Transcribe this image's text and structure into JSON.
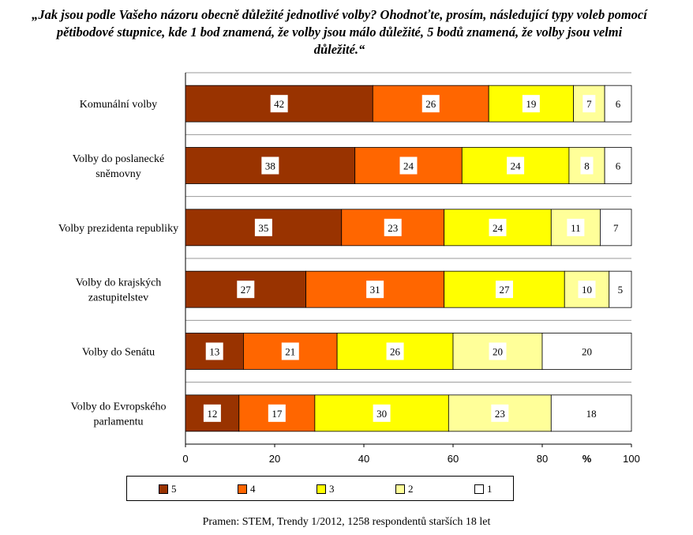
{
  "title": "„Jak jsou podle Vašeho názoru obecně důležité jednotlivé volby? Ohodnoťte, prosím, následující typy voleb pomocí pětibodové stupnice, kde 1 bod znamená, že volby jsou málo důležité, 5 bodů znamená, že volby jsou velmi důležité.“",
  "source": "Pramen: STEM, Trendy 1/2012, 1258 respondentů starších 18 let",
  "colors": {
    "5": "#993300",
    "4": "#ff6600",
    "3": "#ffff00",
    "2": "#ffff99",
    "1": "#ffffff"
  },
  "chart_data": {
    "type": "bar",
    "orientation": "horizontal",
    "stacked": true,
    "categories": [
      [
        "Komunální volby"
      ],
      [
        "Volby do poslanecké",
        "sněmovny"
      ],
      [
        "Volby prezidenta republiky"
      ],
      [
        "Volby do krajských",
        "zastupitelstev"
      ],
      [
        "Volby do Senátu"
      ],
      [
        "Volby do Evropského",
        "parlamentu"
      ]
    ],
    "series": [
      {
        "name": "5",
        "values": [
          42,
          38,
          35,
          27,
          13,
          12
        ]
      },
      {
        "name": "4",
        "values": [
          26,
          24,
          23,
          31,
          21,
          17
        ]
      },
      {
        "name": "3",
        "values": [
          19,
          24,
          24,
          27,
          26,
          30
        ]
      },
      {
        "name": "2",
        "values": [
          7,
          8,
          11,
          10,
          20,
          23
        ]
      },
      {
        "name": "1",
        "values": [
          6,
          6,
          7,
          5,
          20,
          18
        ]
      }
    ],
    "xlim": [
      0,
      100
    ],
    "xticks": [
      0,
      20,
      40,
      60,
      80,
      100
    ],
    "xunit": "%",
    "grid": "horizontal",
    "legend": "bottom"
  }
}
